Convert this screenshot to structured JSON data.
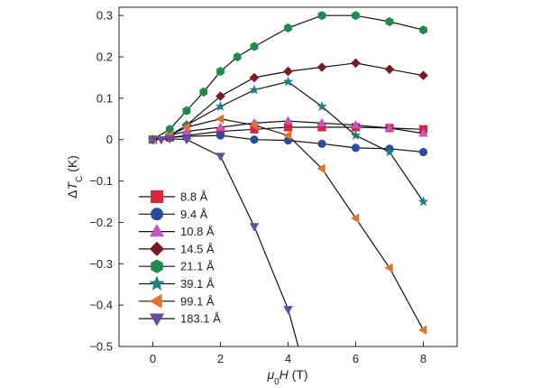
{
  "chart_data": {
    "type": "line",
    "title": "",
    "xlabel": "μ0H (T)",
    "ylabel": "ΔTC (K)",
    "xlabel_parts": {
      "main": "μ",
      "sub": "0",
      "italic": "H",
      "unit": " (T)"
    },
    "ylabel_parts": {
      "delta": "Δ",
      "italic": "T",
      "sub": "C",
      "unit": " (K)"
    },
    "xlim": [
      -1,
      9
    ],
    "ylim": [
      -0.5,
      0.32
    ],
    "xticks": [
      0,
      2,
      4,
      6,
      8
    ],
    "yticks": [
      0.3,
      0.2,
      0.1,
      0,
      -0.1,
      -0.2,
      -0.3,
      -0.4,
      -0.5
    ],
    "grid": false,
    "legend_position": "bottom-left",
    "series": [
      {
        "name": "8.8 Å",
        "color": "#d7263d",
        "marker": "square",
        "x": [
          0,
          0.5,
          1,
          2,
          3,
          4,
          5,
          6,
          7,
          8
        ],
        "y": [
          0,
          0.005,
          0.01,
          0.02,
          0.025,
          0.03,
          0.03,
          0.03,
          0.028,
          0.025
        ]
      },
      {
        "name": "9.4 Å",
        "color": "#2e4aa0",
        "marker": "circle",
        "x": [
          0,
          0.5,
          1,
          2,
          3,
          4,
          5,
          6,
          7,
          8
        ],
        "y": [
          0,
          0.005,
          0.008,
          0.01,
          0.0,
          -0.002,
          -0.01,
          -0.02,
          -0.022,
          -0.03
        ]
      },
      {
        "name": "10.8 Å",
        "color": "#c455c0",
        "marker": "triangle-up",
        "x": [
          0,
          0.5,
          1,
          2,
          3,
          4,
          5,
          6,
          7,
          8
        ],
        "y": [
          0,
          0.01,
          0.02,
          0.03,
          0.04,
          0.045,
          0.04,
          0.035,
          0.028,
          0.015
        ]
      },
      {
        "name": "14.5 Å",
        "color": "#7a1a22",
        "marker": "diamond",
        "x": [
          0,
          0.5,
          1,
          2,
          3,
          4,
          5,
          6,
          7,
          8
        ],
        "y": [
          0,
          0.01,
          0.035,
          0.105,
          0.15,
          0.165,
          0.175,
          0.185,
          0.17,
          0.155
        ]
      },
      {
        "name": "21.1 Å",
        "color": "#1f8a4c",
        "marker": "hexagon",
        "x": [
          0,
          0.5,
          1,
          1.5,
          2,
          2.5,
          3,
          4,
          5,
          6,
          7,
          8
        ],
        "y": [
          0,
          0.025,
          0.07,
          0.115,
          0.165,
          0.2,
          0.225,
          0.27,
          0.3,
          0.3,
          0.285,
          0.265
        ]
      },
      {
        "name": "39.1 Å",
        "color": "#1e7f86",
        "marker": "star",
        "x": [
          0,
          0.5,
          1,
          2,
          3,
          4,
          5,
          6,
          7,
          8
        ],
        "y": [
          0,
          0.01,
          0.035,
          0.08,
          0.12,
          0.14,
          0.08,
          0.01,
          -0.03,
          -0.15
        ]
      },
      {
        "name": "99.1 Å",
        "color": "#e0742a",
        "marker": "triangle-left",
        "x": [
          0,
          0.5,
          1,
          2,
          3,
          4,
          5,
          6,
          7,
          8
        ],
        "y": [
          0,
          0.01,
          0.03,
          0.05,
          0.035,
          0.01,
          -0.07,
          -0.19,
          -0.31,
          -0.46
        ]
      },
      {
        "name": "183.1 Å",
        "color": "#6a4ba0",
        "marker": "triangle-down",
        "x": [
          0,
          0.25,
          0.5,
          1,
          2,
          3,
          4,
          4.3
        ],
        "y": [
          0,
          0,
          0.002,
          0.0,
          -0.04,
          -0.21,
          -0.41,
          -0.5
        ]
      }
    ]
  }
}
